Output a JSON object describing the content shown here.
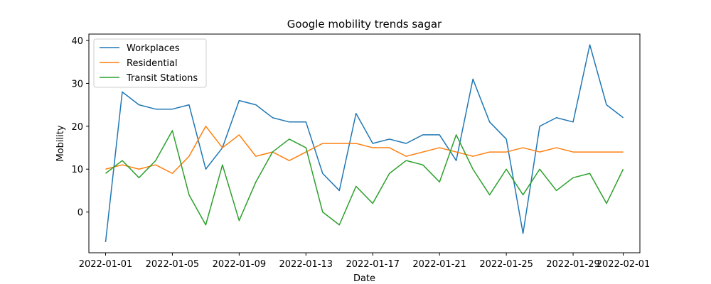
{
  "chart_data": {
    "type": "line",
    "title": "Google mobility trends sagar",
    "xlabel": "Date",
    "ylabel": "Mobility",
    "x": [
      "2022-01-01",
      "2022-01-02",
      "2022-01-03",
      "2022-01-04",
      "2022-01-05",
      "2022-01-06",
      "2022-01-07",
      "2022-01-08",
      "2022-01-09",
      "2022-01-10",
      "2022-01-11",
      "2022-01-12",
      "2022-01-13",
      "2022-01-14",
      "2022-01-15",
      "2022-01-16",
      "2022-01-17",
      "2022-01-18",
      "2022-01-19",
      "2022-01-20",
      "2022-01-21",
      "2022-01-22",
      "2022-01-23",
      "2022-01-24",
      "2022-01-25",
      "2022-01-26",
      "2022-01-27",
      "2022-01-28",
      "2022-01-29",
      "2022-01-30",
      "2022-01-31",
      "2022-02-01"
    ],
    "xlim": [
      "2021-12-31",
      "2022-02-02"
    ],
    "ylim": [
      -9.5,
      41.5
    ],
    "x_ticks": [
      "2022-01-01",
      "2022-01-05",
      "2022-01-09",
      "2022-01-13",
      "2022-01-17",
      "2022-01-21",
      "2022-01-25",
      "2022-01-29",
      "2022-02-01"
    ],
    "y_ticks": [
      0,
      10,
      20,
      30,
      40
    ],
    "grid": false,
    "legend_position": "top-left",
    "series": [
      {
        "name": "Workplaces",
        "color": "#1f77b4",
        "values": [
          -7,
          28,
          25,
          24,
          24,
          25,
          10,
          15,
          26,
          25,
          22,
          21,
          21,
          9,
          5,
          23,
          16,
          17,
          16,
          18,
          18,
          12,
          31,
          21,
          17,
          -5,
          20,
          22,
          21,
          39,
          25,
          22
        ]
      },
      {
        "name": "Residential",
        "color": "#ff7f0e",
        "values": [
          10,
          11,
          10,
          11,
          9,
          13,
          20,
          15,
          18,
          13,
          14,
          12,
          14,
          16,
          16,
          16,
          15,
          15,
          13,
          14,
          15,
          14,
          13,
          14,
          14,
          15,
          14,
          15,
          14,
          14,
          14,
          14
        ]
      },
      {
        "name": "Transit Stations",
        "color": "#2ca02c",
        "values": [
          9,
          12,
          8,
          12,
          19,
          4,
          -3,
          11,
          -2,
          7,
          14,
          17,
          15,
          0,
          -3,
          6,
          2,
          9,
          12,
          11,
          7,
          18,
          10,
          4,
          10,
          4,
          10,
          5,
          8,
          9,
          2,
          10
        ]
      }
    ]
  }
}
